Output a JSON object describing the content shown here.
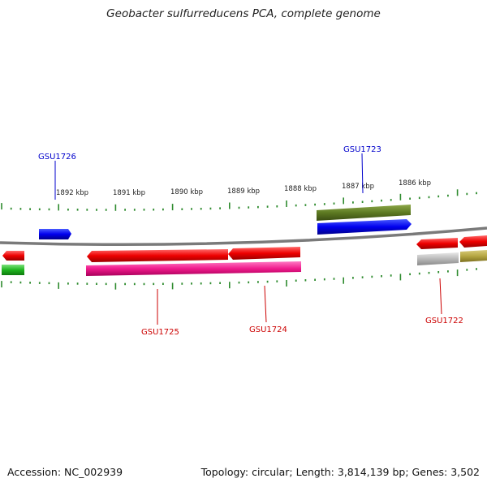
{
  "title": "Geobacter sulfurreducens PCA, complete genome",
  "footer": {
    "accession": "Accession: NC_002939",
    "summary": "Topology: circular; Length: 3,814,139 bp; Genes: 3,502"
  },
  "scale_labels": [
    "1892 kbp",
    "1891 kbp",
    "1890 kbp",
    "1889 kbp",
    "1888 kbp",
    "1887 kbp",
    "1886 kbp"
  ],
  "gene_labels": [
    {
      "text": "GSU1726",
      "color": "#0000cc"
    },
    {
      "text": "GSU1723",
      "color": "#0000cc"
    },
    {
      "text": "GSU1725",
      "color": "#cc0000"
    },
    {
      "text": "GSU1724",
      "color": "#cc0000"
    },
    {
      "text": "GSU1722",
      "color": "#cc0000"
    }
  ],
  "colors": {
    "backbone": "#808080",
    "tick": "#2e8b2e",
    "forward_gene": "#0000ff",
    "reverse_gene": "#ff0000",
    "rrna_pink": "#ff1493",
    "olive": "#556b2f",
    "green": "#22bb22",
    "grey": "#b0b0b0",
    "khaki": "#b5a642"
  }
}
